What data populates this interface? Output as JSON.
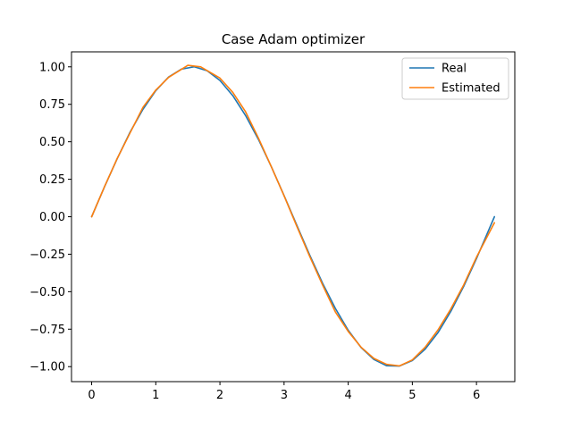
{
  "chart_data": {
    "type": "line",
    "title": "Case Adam optimizer",
    "xlabel": "",
    "ylabel": "",
    "xlim": [
      -0.3142,
      6.5974
    ],
    "ylim": [
      -1.1,
      1.1
    ],
    "xticks": [
      0,
      1,
      2,
      3,
      4,
      5,
      6
    ],
    "yticks": [
      -1.0,
      -0.75,
      -0.5,
      -0.25,
      0.0,
      0.25,
      0.5,
      0.75,
      1.0
    ],
    "xtick_labels": [
      "0",
      "1",
      "2",
      "3",
      "4",
      "5",
      "6"
    ],
    "ytick_labels": [
      "−1.00",
      "−0.75",
      "−0.50",
      "−0.25",
      "0.00",
      "0.25",
      "0.50",
      "0.75",
      "1.00"
    ],
    "grid": false,
    "legend_position": "top-right",
    "series": [
      {
        "name": "Real",
        "color": "#1f77b4",
        "x": [
          0.0,
          0.2,
          0.4,
          0.6,
          0.8,
          1.0,
          1.2,
          1.4,
          1.6,
          1.8,
          2.0,
          2.2,
          2.4,
          2.6,
          2.8,
          3.0,
          3.2,
          3.4,
          3.6,
          3.8,
          4.0,
          4.2,
          4.4,
          4.6,
          4.8,
          5.0,
          5.2,
          5.4,
          5.6,
          5.8,
          6.0,
          6.28
        ],
        "y": [
          0.0,
          0.199,
          0.389,
          0.565,
          0.717,
          0.841,
          0.932,
          0.985,
          1.0,
          0.974,
          0.909,
          0.808,
          0.675,
          0.516,
          0.335,
          0.141,
          -0.058,
          -0.256,
          -0.443,
          -0.612,
          -0.757,
          -0.872,
          -0.952,
          -0.994,
          -0.996,
          -0.959,
          -0.883,
          -0.773,
          -0.631,
          -0.465,
          -0.279,
          0.0
        ]
      },
      {
        "name": "Estimated",
        "color": "#ff7f0e",
        "x": [
          0.0,
          0.2,
          0.4,
          0.6,
          0.8,
          1.0,
          1.2,
          1.5,
          1.7,
          2.0,
          2.2,
          2.4,
          2.6,
          2.8,
          3.0,
          3.2,
          3.4,
          3.6,
          3.8,
          4.0,
          4.2,
          4.4,
          4.6,
          4.8,
          5.0,
          5.2,
          5.4,
          5.6,
          5.8,
          6.0,
          6.28
        ],
        "y": [
          0.0,
          0.2,
          0.39,
          0.56,
          0.73,
          0.845,
          0.93,
          1.01,
          1.0,
          0.925,
          0.83,
          0.7,
          0.525,
          0.335,
          0.14,
          -0.065,
          -0.265,
          -0.455,
          -0.635,
          -0.765,
          -0.87,
          -0.945,
          -0.985,
          -0.995,
          -0.955,
          -0.87,
          -0.755,
          -0.615,
          -0.455,
          -0.27,
          -0.04
        ]
      }
    ]
  }
}
